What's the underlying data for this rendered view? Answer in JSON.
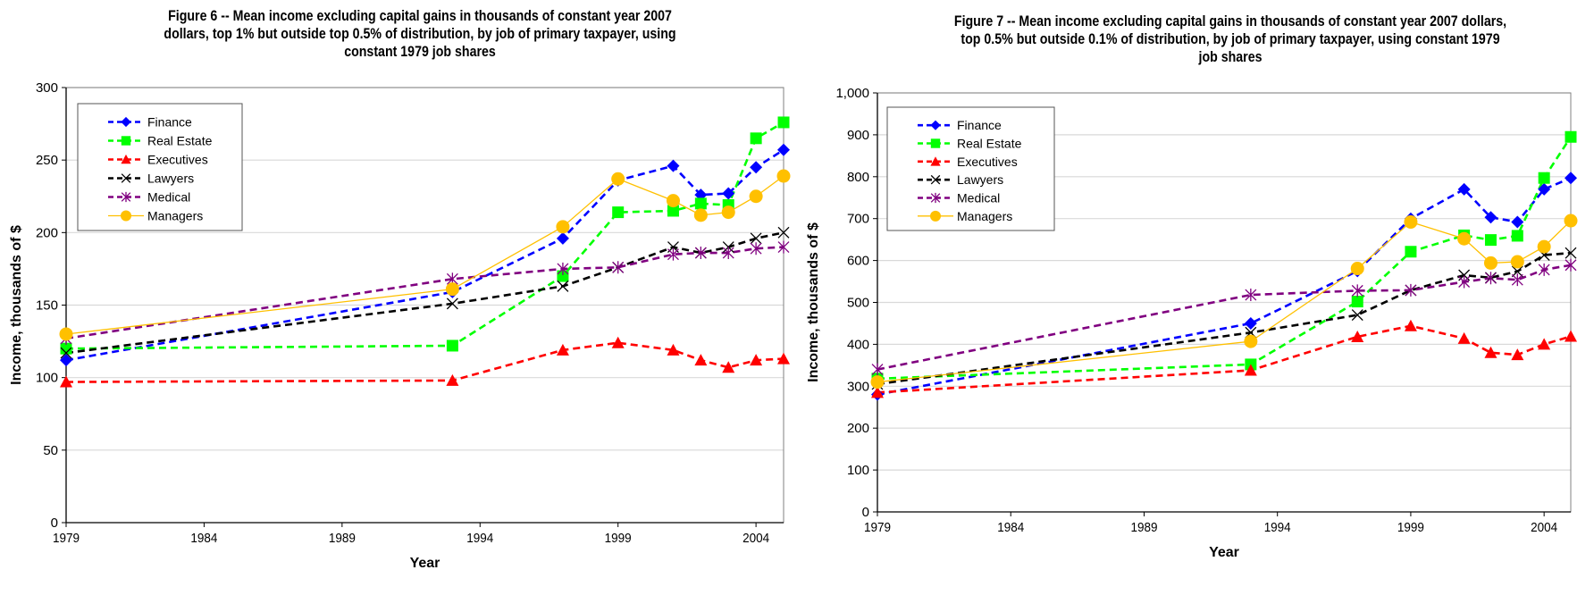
{
  "chart_data": [
    {
      "id": "fig6",
      "type": "line",
      "title": "Figure 6 -- Mean income excluding capital gains in thousands of constant year 2007 dollars, top 1% but outside top 0.5% of distribution, by job of primary taxpayer, using constant 1979 job shares",
      "title_lines": [
        "Figure 6 -- Mean income excluding capital gains in thousands of constant year 2007",
        "dollars, top 1% but outside top 0.5% of distribution, by job of primary taxpayer, using",
        "constant 1979 job shares"
      ],
      "xlabel": "Year",
      "ylabel": "Income, thousands of $",
      "xlim": [
        1979,
        2005
      ],
      "ylim": [
        0,
        300
      ],
      "xticks": [
        1979,
        1984,
        1989,
        1994,
        1999,
        2004
      ],
      "yticks": [
        0,
        50,
        100,
        150,
        200,
        250,
        300
      ],
      "ytick_labels": [
        "0",
        "50",
        "100",
        "150",
        "200",
        "250",
        "300"
      ],
      "grid": "horizontal",
      "legend_position": "top-left",
      "x": [
        1979,
        1993,
        1997,
        1999,
        2001,
        2002,
        2003,
        2004,
        2005
      ],
      "series": [
        {
          "name": "Finance",
          "color": "#0000FF",
          "dash": true,
          "marker": "diamond",
          "values": [
            112,
            159,
            196,
            236,
            246,
            226,
            227,
            245,
            257
          ]
        },
        {
          "name": "Real Estate",
          "color": "#00FF00",
          "dash": true,
          "marker": "square",
          "values": [
            120,
            122,
            170,
            214,
            215,
            220,
            219,
            265,
            276
          ]
        },
        {
          "name": "Executives",
          "color": "#FF0000",
          "dash": true,
          "marker": "triangle",
          "values": [
            97,
            98,
            119,
            124,
            119,
            112,
            107,
            112,
            113
          ]
        },
        {
          "name": "Lawyers",
          "color": "#000000",
          "dash": true,
          "marker": "x",
          "values": [
            117,
            151,
            163,
            176,
            190,
            186,
            190,
            196,
            200
          ]
        },
        {
          "name": "Medical",
          "color": "#800080",
          "dash": true,
          "marker": "asterisk",
          "values": [
            127,
            168,
            175,
            176,
            185,
            186,
            186,
            189,
            190
          ]
        },
        {
          "name": "Managers",
          "color": "#FFC000",
          "dash": false,
          "marker": "circle",
          "values": [
            130,
            161,
            204,
            237,
            222,
            212,
            214,
            225,
            239
          ]
        }
      ]
    },
    {
      "id": "fig7",
      "type": "line",
      "title": "Figure 7 -- Mean income excluding capital gains in thousands of constant year 2007 dollars, top 0.5% but outside 0.1% of distribution, by job of primary taxpayer, using constant 1979 job shares",
      "title_lines": [
        "Figure 7 -- Mean income excluding capital gains in thousands of constant year 2007 dollars,",
        "top 0.5% but outside 0.1% of distribution, by job of primary taxpayer, using constant 1979",
        "job shares"
      ],
      "xlabel": "Year",
      "ylabel": "Income, thousands of $",
      "xlim": [
        1979,
        2005
      ],
      "ylim": [
        0,
        1000
      ],
      "xticks": [
        1979,
        1984,
        1989,
        1994,
        1999,
        2004
      ],
      "yticks": [
        0,
        100,
        200,
        300,
        400,
        500,
        600,
        700,
        800,
        900,
        1000
      ],
      "ytick_labels": [
        "0",
        "100",
        "200",
        "300",
        "400",
        "500",
        "600",
        "700",
        "800",
        "900",
        "1,000"
      ],
      "grid": "horizontal",
      "legend_position": "top-left",
      "x": [
        1979,
        1993,
        1997,
        1999,
        2001,
        2002,
        2003,
        2004,
        2005
      ],
      "series": [
        {
          "name": "Finance",
          "color": "#0000FF",
          "dash": true,
          "marker": "diamond",
          "values": [
            280,
            450,
            575,
            700,
            770,
            703,
            692,
            770,
            797
          ]
        },
        {
          "name": "Real Estate",
          "color": "#00FF00",
          "dash": true,
          "marker": "square",
          "values": [
            318,
            352,
            502,
            621,
            660,
            649,
            659,
            797,
            895
          ]
        },
        {
          "name": "Executives",
          "color": "#FF0000",
          "dash": true,
          "marker": "triangle",
          "values": [
            285,
            338,
            418,
            444,
            414,
            380,
            375,
            400,
            419
          ]
        },
        {
          "name": "Lawyers",
          "color": "#000000",
          "dash": true,
          "marker": "x",
          "values": [
            305,
            428,
            470,
            529,
            565,
            559,
            574,
            613,
            618
          ]
        },
        {
          "name": "Medical",
          "color": "#800080",
          "dash": true,
          "marker": "asterisk",
          "values": [
            340,
            518,
            528,
            529,
            549,
            558,
            554,
            578,
            589
          ]
        },
        {
          "name": "Managers",
          "color": "#FFC000",
          "dash": false,
          "marker": "circle",
          "values": [
            310,
            407,
            581,
            692,
            652,
            594,
            597,
            633,
            695
          ]
        }
      ]
    }
  ]
}
